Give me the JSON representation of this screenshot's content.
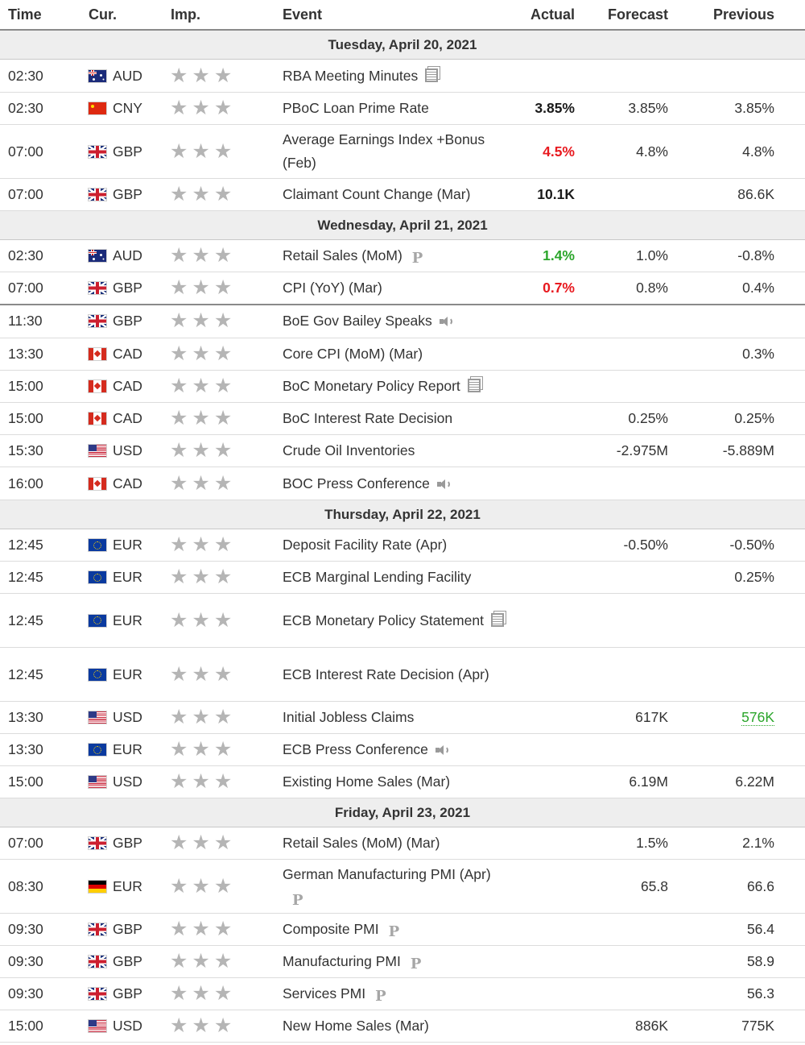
{
  "header": {
    "time": "Time",
    "currency": "Cur.",
    "importance": "Imp.",
    "event": "Event",
    "actual": "Actual",
    "forecast": "Forecast",
    "previous": "Previous"
  },
  "stars": "★★★",
  "colors": {
    "actual_better": "#2aa52a",
    "actual_worse": "#e8191f",
    "actual_neutral": "#1a1a1a"
  },
  "days": [
    {
      "label": "Tuesday, April 20, 2021",
      "events": [
        {
          "time": "02:30",
          "flag": "aud",
          "cur": "AUD",
          "event": "RBA Meeting Minutes",
          "icon": "document-icon",
          "actual": "",
          "actual_color": "",
          "forecast": "",
          "previous": "",
          "row_height": 41
        },
        {
          "time": "02:30",
          "flag": "cny",
          "cur": "CNY",
          "event": "PBoC Loan Prime Rate",
          "icon": "",
          "actual": "3.85%",
          "actual_color": "black",
          "forecast": "3.85%",
          "previous": "3.85%",
          "row_height": 40
        },
        {
          "time": "07:00",
          "flag": "gbp",
          "cur": "GBP",
          "event": "Average Earnings Index +Bonus (Feb)",
          "icon": "",
          "actual": "4.5%",
          "actual_color": "red",
          "forecast": "4.8%",
          "previous": "4.8%",
          "row_height": 67
        },
        {
          "time": "07:00",
          "flag": "gbp",
          "cur": "GBP",
          "event": "Claimant Count Change (Mar)",
          "icon": "",
          "actual": "10.1K",
          "actual_color": "black",
          "forecast": "",
          "previous": "86.6K",
          "row_height": 40
        }
      ]
    },
    {
      "label": "Wednesday, April 21, 2021",
      "events": [
        {
          "time": "02:30",
          "flag": "aud",
          "cur": "AUD",
          "event": "Retail Sales (MoM)",
          "icon": "preliminary-icon",
          "actual": "1.4%",
          "actual_color": "green",
          "forecast": "1.0%",
          "previous": "-0.8%",
          "row_height": 40
        },
        {
          "time": "07:00",
          "flag": "gbp",
          "cur": "GBP",
          "event": "CPI (YoY) (Mar)",
          "icon": "",
          "actual": "0.7%",
          "actual_color": "red",
          "forecast": "0.8%",
          "previous": "0.4%",
          "row_height": 40,
          "separator": true
        },
        {
          "time": "11:30",
          "flag": "gbp",
          "cur": "GBP",
          "event": "BoE Gov Bailey Speaks",
          "icon": "speaker-icon",
          "actual": "",
          "actual_color": "",
          "forecast": "",
          "previous": "",
          "row_height": 42
        },
        {
          "time": "13:30",
          "flag": "cad",
          "cur": "CAD",
          "event": "Core CPI (MoM) (Mar)",
          "icon": "",
          "actual": "",
          "actual_color": "",
          "forecast": "",
          "previous": "0.3%",
          "row_height": 40
        },
        {
          "time": "15:00",
          "flag": "cad",
          "cur": "CAD",
          "event": "BoC Monetary Policy Report",
          "icon": "document-icon",
          "actual": "",
          "actual_color": "",
          "forecast": "",
          "previous": "",
          "row_height": 40
        },
        {
          "time": "15:00",
          "flag": "cad",
          "cur": "CAD",
          "event": "BoC Interest Rate Decision",
          "icon": "",
          "actual": "",
          "actual_color": "",
          "forecast": "0.25%",
          "previous": "0.25%",
          "row_height": 40
        },
        {
          "time": "15:30",
          "flag": "usd",
          "cur": "USD",
          "event": "Crude Oil Inventories",
          "icon": "",
          "actual": "",
          "actual_color": "",
          "forecast": "-2.975M",
          "previous": "-5.889M",
          "row_height": 40
        },
        {
          "time": "16:00",
          "flag": "cad",
          "cur": "CAD",
          "event": "BOC Press Conference",
          "icon": "speaker-icon",
          "actual": "",
          "actual_color": "",
          "forecast": "",
          "previous": "",
          "row_height": 41
        }
      ]
    },
    {
      "label": "Thursday, April 22, 2021",
      "events": [
        {
          "time": "12:45",
          "flag": "eur",
          "cur": "EUR",
          "event": "Deposit Facility Rate (Apr)",
          "icon": "",
          "actual": "",
          "actual_color": "",
          "forecast": "-0.50%",
          "previous": "-0.50%",
          "row_height": 40
        },
        {
          "time": "12:45",
          "flag": "eur",
          "cur": "EUR",
          "event": "ECB Marginal Lending Facility",
          "icon": "",
          "actual": "",
          "actual_color": "",
          "forecast": "",
          "previous": "0.25%",
          "row_height": 40
        },
        {
          "time": "12:45",
          "flag": "eur",
          "cur": "EUR",
          "event": "ECB Monetary Policy Statement",
          "icon": "document-icon",
          "actual": "",
          "actual_color": "",
          "forecast": "",
          "previous": "",
          "row_height": 67
        },
        {
          "time": "12:45",
          "flag": "eur",
          "cur": "EUR",
          "event": "ECB Interest Rate Decision (Apr)",
          "icon": "",
          "actual": "",
          "actual_color": "",
          "forecast": "",
          "previous": "",
          "row_height": 67
        },
        {
          "time": "13:30",
          "flag": "usd",
          "cur": "USD",
          "event": "Initial Jobless Claims",
          "icon": "",
          "actual": "",
          "actual_color": "",
          "forecast": "617K",
          "previous": "576K",
          "previous_color": "green",
          "row_height": 40
        },
        {
          "time": "13:30",
          "flag": "eur",
          "cur": "EUR",
          "event": "ECB Press Conference",
          "icon": "speaker-icon",
          "actual": "",
          "actual_color": "",
          "forecast": "",
          "previous": "",
          "row_height": 40
        },
        {
          "time": "15:00",
          "flag": "usd",
          "cur": "USD",
          "event": "Existing Home Sales (Mar)",
          "icon": "",
          "actual": "",
          "actual_color": "",
          "forecast": "6.19M",
          "previous": "6.22M",
          "row_height": 40
        }
      ]
    },
    {
      "label": "Friday, April 23, 2021",
      "events": [
        {
          "time": "07:00",
          "flag": "gbp",
          "cur": "GBP",
          "event": "Retail Sales (MoM) (Mar)",
          "icon": "",
          "actual": "",
          "actual_color": "",
          "forecast": "1.5%",
          "previous": "2.1%",
          "row_height": 40
        },
        {
          "time": "08:30",
          "flag": "de",
          "cur": "EUR",
          "event": "German Manufacturing PMI (Apr)",
          "icon": "preliminary-icon",
          "actual": "",
          "actual_color": "",
          "forecast": "65.8",
          "previous": "66.6",
          "row_height": 67
        },
        {
          "time": "09:30",
          "flag": "gbp",
          "cur": "GBP",
          "event": "Composite PMI",
          "icon": "preliminary-icon",
          "actual": "",
          "actual_color": "",
          "forecast": "",
          "previous": "56.4",
          "row_height": 40
        },
        {
          "time": "09:30",
          "flag": "gbp",
          "cur": "GBP",
          "event": "Manufacturing PMI",
          "icon": "preliminary-icon",
          "actual": "",
          "actual_color": "",
          "forecast": "",
          "previous": "58.9",
          "row_height": 40
        },
        {
          "time": "09:30",
          "flag": "gbp",
          "cur": "GBP",
          "event": "Services PMI",
          "icon": "preliminary-icon",
          "actual": "",
          "actual_color": "",
          "forecast": "",
          "previous": "56.3",
          "row_height": 40
        },
        {
          "time": "15:00",
          "flag": "usd",
          "cur": "USD",
          "event": "New Home Sales (Mar)",
          "icon": "",
          "actual": "",
          "actual_color": "",
          "forecast": "886K",
          "previous": "775K",
          "row_height": 40
        }
      ]
    }
  ]
}
